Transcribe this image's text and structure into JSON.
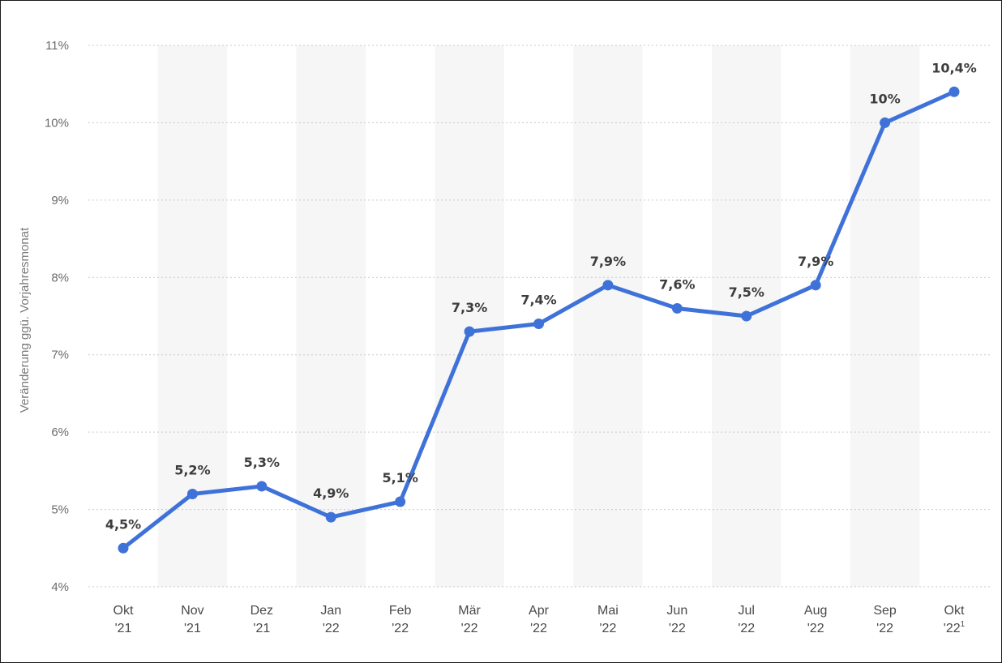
{
  "chart_data": {
    "type": "line",
    "ylabel": "Veränderung ggü. Vorjahresmonat",
    "xlabel": "",
    "ylim": [
      4,
      11
    ],
    "yticks": [
      4,
      5,
      6,
      7,
      8,
      9,
      10,
      11
    ],
    "ytick_labels": [
      "4%",
      "5%",
      "6%",
      "7%",
      "8%",
      "9%",
      "10%",
      "11%"
    ],
    "categories": [
      {
        "month": "Okt",
        "year": "'21"
      },
      {
        "month": "Nov",
        "year": "'21"
      },
      {
        "month": "Dez",
        "year": "'21"
      },
      {
        "month": "Jan",
        "year": "'22"
      },
      {
        "month": "Feb",
        "year": "'22"
      },
      {
        "month": "Mär",
        "year": "'22"
      },
      {
        "month": "Apr",
        "year": "'22"
      },
      {
        "month": "Mai",
        "year": "'22"
      },
      {
        "month": "Jun",
        "year": "'22"
      },
      {
        "month": "Jul",
        "year": "'22"
      },
      {
        "month": "Aug",
        "year": "'22"
      },
      {
        "month": "Sep",
        "year": "'22"
      },
      {
        "month": "Okt",
        "year": "'22",
        "footnote": "1"
      }
    ],
    "series": [
      {
        "values": [
          4.5,
          5.2,
          5.3,
          4.9,
          5.1,
          7.3,
          7.4,
          7.9,
          7.6,
          7.5,
          7.9,
          10,
          10.4
        ],
        "labels": [
          "4,5%",
          "5,2%",
          "5,3%",
          "4,9%",
          "5,1%",
          "7,3%",
          "7,4%",
          "7,9%",
          "7,6%",
          "7,5%",
          "7,9%",
          "10%",
          "10,4%"
        ],
        "color": "#3f72d9"
      }
    ],
    "grid": true,
    "band_color": "#f6f6f6"
  }
}
